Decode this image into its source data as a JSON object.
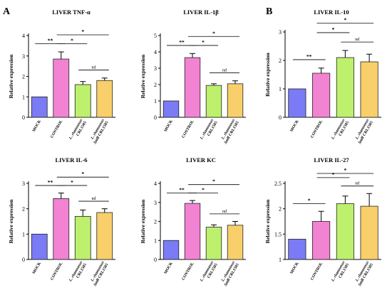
{
  "panel_letters": [
    "A",
    "B"
  ],
  "colors": [
    "#7a7bf5",
    "#f283d2",
    "#bdf06c",
    "#f8cf6a"
  ],
  "chart_data": [
    {
      "type": "bar",
      "panel": "A",
      "title": "LIVER TNF-α",
      "ylabel": "Relative expression",
      "categories": [
        "MOCK",
        "CONTROL",
        "L. rhamnosus|CRL1505",
        "L. rhamnosus|∆mlf CRL1505"
      ],
      "values": [
        1.0,
        2.85,
        1.6,
        1.8
      ],
      "errors": [
        0,
        0.35,
        0.15,
        0.12
      ],
      "ylim": [
        0,
        4
      ],
      "yticks": [
        0,
        1,
        2,
        3,
        4
      ],
      "significance": [
        {
          "from": 0,
          "to": 1,
          "label": "**"
        },
        {
          "from": 1,
          "to": 2,
          "label": "*"
        },
        {
          "from": 1,
          "to": 3,
          "label": "*"
        },
        {
          "from": 2,
          "to": 3,
          "label": "nd"
        }
      ]
    },
    {
      "type": "bar",
      "panel": "A",
      "title": "LIVER IL-1β",
      "ylabel": "Relative expression",
      "categories": [
        "MOCK",
        "CONTROL",
        "L. rhamnosus|CRL1505",
        "L. rhamnosus|∆mlf CRL1505"
      ],
      "values": [
        1.0,
        3.65,
        1.95,
        2.05
      ],
      "errors": [
        0,
        0.25,
        0.1,
        0.18
      ],
      "ylim": [
        0,
        5
      ],
      "yticks": [
        0,
        1,
        2,
        3,
        4,
        5
      ],
      "significance": [
        {
          "from": 0,
          "to": 1,
          "label": "**"
        },
        {
          "from": 1,
          "to": 2,
          "label": "*"
        },
        {
          "from": 1,
          "to": 3,
          "label": "*"
        },
        {
          "from": 2,
          "to": 3,
          "label": "nd"
        }
      ]
    },
    {
      "type": "bar",
      "panel": "B",
      "title": "LIVER IL-10",
      "ylabel": "Relative expression",
      "categories": [
        "MOCK",
        "CONTROL",
        "L. rhamnosus|CRL1505",
        "L. rhamnosus|∆mlf CRL1505"
      ],
      "values": [
        1.0,
        1.55,
        2.1,
        1.95
      ],
      "errors": [
        0,
        0.18,
        0.25,
        0.27
      ],
      "ylim": [
        0,
        3
      ],
      "yticks": [
        0,
        1,
        2,
        3
      ],
      "significance": [
        {
          "from": 0,
          "to": 1,
          "label": "**"
        },
        {
          "from": 1,
          "to": 2,
          "label": "*"
        },
        {
          "from": 1,
          "to": 3,
          "label": "*"
        },
        {
          "from": 2,
          "to": 3,
          "label": "nd"
        }
      ]
    },
    {
      "type": "bar",
      "panel": "A",
      "title": "LIVER IL-6",
      "ylabel": "Relative expression",
      "categories": [
        "MOCK",
        "CONTROL",
        "L. rhamnosus|CRL1505",
        "L. rhamnosus|∆mlf CRL1505"
      ],
      "values": [
        1.0,
        2.4,
        1.7,
        1.85
      ],
      "errors": [
        0,
        0.22,
        0.25,
        0.15
      ],
      "ylim": [
        0,
        3
      ],
      "yticks": [
        0,
        1,
        2,
        3
      ],
      "significance": [
        {
          "from": 0,
          "to": 1,
          "label": "**"
        },
        {
          "from": 1,
          "to": 2,
          "label": "*"
        },
        {
          "from": 1,
          "to": 3,
          "label": "*"
        },
        {
          "from": 2,
          "to": 3,
          "label": "nd"
        }
      ]
    },
    {
      "type": "bar",
      "panel": "A",
      "title": "LIVER KC",
      "ylabel": "Relative expression",
      "categories": [
        "MOCK",
        "CONTROL",
        "L. rhamnosus|CRL1505",
        "L. rhamnosus|∆mlf CRL1505"
      ],
      "values": [
        1.0,
        2.95,
        1.7,
        1.8
      ],
      "errors": [
        0,
        0.15,
        0.12,
        0.2
      ],
      "ylim": [
        0,
        4
      ],
      "yticks": [
        0,
        1,
        2,
        3,
        4
      ],
      "significance": [
        {
          "from": 0,
          "to": 1,
          "label": "**"
        },
        {
          "from": 1,
          "to": 2,
          "label": "*"
        },
        {
          "from": 1,
          "to": 3,
          "label": "*"
        },
        {
          "from": 2,
          "to": 3,
          "label": "nd"
        }
      ]
    },
    {
      "type": "bar",
      "panel": "B",
      "title": "LIVER IL-27",
      "ylabel": "Relative expression",
      "categories": [
        "MOCK",
        "CONTROL",
        "L. rhamnosus|CRL1505",
        "L. rhamnosus|∆mlf CRL1505"
      ],
      "values": [
        1.4,
        1.75,
        2.1,
        2.05
      ],
      "errors": [
        0,
        0.2,
        0.15,
        0.25
      ],
      "ylim": [
        1,
        2.5
      ],
      "yticks": [
        1,
        1.5,
        2,
        2.5
      ],
      "significance": [
        {
          "from": 0,
          "to": 1,
          "label": "*"
        },
        {
          "from": 1,
          "to": 2,
          "label": "*"
        },
        {
          "from": 1,
          "to": 3,
          "label": "*"
        },
        {
          "from": 2,
          "to": 3,
          "label": "nd"
        }
      ]
    }
  ]
}
